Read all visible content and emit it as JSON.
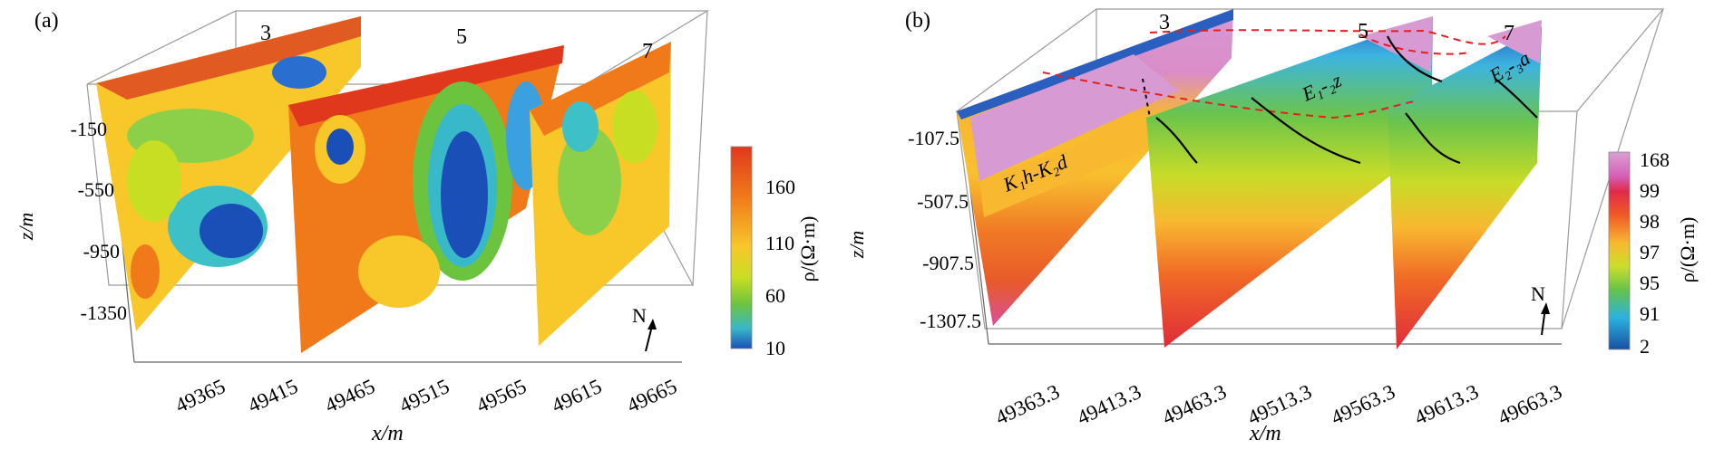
{
  "panels": [
    {
      "id": "a",
      "label": "(a)",
      "section_labels": [
        "3",
        "5",
        "7"
      ],
      "z_ticks": [
        "-150",
        "-550",
        "-950",
        "-1350"
      ],
      "z_label": "z/m",
      "x_ticks": [
        "49365",
        "49415",
        "49465",
        "49515",
        "49565",
        "49615",
        "49665"
      ],
      "x_label": "x/m",
      "colorbar": {
        "ticks": [
          "160",
          "110",
          "60",
          "10"
        ],
        "label": "ρ/(Ω·m)",
        "colors": [
          "#e8411e",
          "#f07a1a",
          "#f8c22a",
          "#d8e020",
          "#7cc63a",
          "#3ec0c8",
          "#1a5fc0"
        ]
      },
      "north": "N"
    },
    {
      "id": "b",
      "label": "(b)",
      "section_labels": [
        "3",
        "5",
        "7"
      ],
      "z_ticks": [
        "-107.5",
        "-507.5",
        "-907.5",
        "-1307.5"
      ],
      "z_label": "z/m",
      "x_ticks": [
        "49363.3",
        "49413.3",
        "49463.3",
        "49513.3",
        "49563.3",
        "49613.3",
        "49663.3"
      ],
      "x_label": "x/m",
      "colorbar": {
        "ticks": [
          "168",
          "99",
          "98",
          "97",
          "95",
          "91",
          "2"
        ],
        "label": "ρ/(Ω·m)",
        "colors": [
          "#d59ad0",
          "#e0307a",
          "#f05a28",
          "#f8b830",
          "#c8dc28",
          "#6cc44a",
          "#2cb4e0",
          "#1a4fa0"
        ]
      },
      "formation_labels": [
        "K₁h-K₂d",
        "E₁-₂z",
        "E₂-₃a"
      ],
      "north": "N"
    }
  ]
}
